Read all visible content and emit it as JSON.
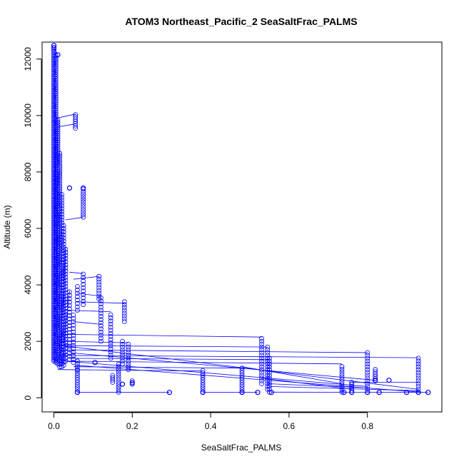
{
  "chart_data": {
    "type": "scatter",
    "title": "ATOM3 Northeast_Pacific_2 SeaSaltFrac_PALMS",
    "xlabel": "SeaSaltFrac_PALMS",
    "ylabel": "Altitude (m)",
    "xlim": [
      -0.03,
      0.99
    ],
    "ylim": [
      -500,
      12600
    ],
    "x_ticks": [
      0.0,
      0.2,
      0.4,
      0.6,
      0.8
    ],
    "x_tick_labels": [
      "0.0",
      "0.2",
      "0.4",
      "0.6",
      "0.8"
    ],
    "y_ticks": [
      0,
      2000,
      4000,
      6000,
      8000,
      10000,
      12000
    ],
    "y_tick_labels": [
      "0",
      "2000",
      "4000",
      "6000",
      "8000",
      "10000",
      "12000"
    ],
    "grid": false,
    "legend": "none",
    "point_style": "open-circle",
    "connected": true,
    "color": "#0000ff",
    "columns": [
      {
        "x": 0.0,
        "y_min": 1300,
        "y_max": 12450,
        "step": 60
      },
      {
        "x": 0.005,
        "y_min": 1250,
        "y_max": 12150,
        "step": 75
      },
      {
        "x": 0.01,
        "y_min": 1200,
        "y_max": 9900,
        "step": 80
      },
      {
        "x": 0.015,
        "y_min": 1100,
        "y_max": 8700,
        "step": 90
      },
      {
        "x": 0.02,
        "y_min": 1100,
        "y_max": 7200,
        "step": 100
      },
      {
        "x": 0.025,
        "y_min": 1150,
        "y_max": 6200,
        "step": 110
      },
      {
        "x": 0.03,
        "y_min": 1300,
        "y_max": 5300,
        "step": 110
      },
      {
        "x": 0.04,
        "y_min": 1350,
        "y_max": 3800,
        "step": 120
      },
      {
        "x": 0.05,
        "y_min": 1250,
        "y_max": 3000,
        "step": 120
      },
      {
        "x": 0.055,
        "y_min": 9550,
        "y_max": 10050,
        "step": 80
      },
      {
        "x": 0.06,
        "y_min": 3100,
        "y_max": 4000,
        "step": 120
      },
      {
        "x": 0.06,
        "y_min": 1000,
        "y_max": 1300,
        "step": 100
      },
      {
        "x": 0.06,
        "y_min": 200,
        "y_max": 1000,
        "step": 85
      },
      {
        "x": 0.075,
        "y_min": 6400,
        "y_max": 7400,
        "step": 90
      },
      {
        "x": 0.075,
        "y_min": 3300,
        "y_max": 4400,
        "step": 120
      },
      {
        "x": 0.115,
        "y_min": 3500,
        "y_max": 4300,
        "step": 100
      },
      {
        "x": 0.12,
        "y_min": 2000,
        "y_max": 3600,
        "step": 110
      },
      {
        "x": 0.145,
        "y_min": 1400,
        "y_max": 3000,
        "step": 110
      },
      {
        "x": 0.15,
        "y_min": 550,
        "y_max": 850,
        "step": 80
      },
      {
        "x": 0.165,
        "y_min": 200,
        "y_max": 1200,
        "step": 90
      },
      {
        "x": 0.175,
        "y_min": 1200,
        "y_max": 2000,
        "step": 100
      },
      {
        "x": 0.18,
        "y_min": 2700,
        "y_max": 3400,
        "step": 100
      },
      {
        "x": 0.19,
        "y_min": 1000,
        "y_max": 1900,
        "step": 100
      },
      {
        "x": 0.2,
        "y_min": 480,
        "y_max": 600,
        "step": 60
      },
      {
        "x": 0.38,
        "y_min": 200,
        "y_max": 1000,
        "step": 85
      },
      {
        "x": 0.48,
        "y_min": 200,
        "y_max": 1100,
        "step": 85
      },
      {
        "x": 0.53,
        "y_min": 500,
        "y_max": 2150,
        "step": 100
      },
      {
        "x": 0.545,
        "y_min": 300,
        "y_max": 1850,
        "step": 100
      },
      {
        "x": 0.55,
        "y_min": 200,
        "y_max": 1400,
        "step": 100
      },
      {
        "x": 0.735,
        "y_min": 200,
        "y_max": 1150,
        "step": 90
      },
      {
        "x": 0.76,
        "y_min": 200,
        "y_max": 550,
        "step": 70
      },
      {
        "x": 0.8,
        "y_min": 200,
        "y_max": 1600,
        "step": 100
      },
      {
        "x": 0.82,
        "y_min": 600,
        "y_max": 1000,
        "step": 80
      },
      {
        "x": 0.93,
        "y_min": 200,
        "y_max": 1450,
        "step": 100
      }
    ],
    "points": [
      {
        "x": 0.075,
        "y": 7430
      },
      {
        "x": 0.04,
        "y": 7430
      },
      {
        "x": 0.0,
        "y": 12480
      },
      {
        "x": 0.0,
        "y": 12400
      },
      {
        "x": 0.01,
        "y": 12150
      },
      {
        "x": 0.06,
        "y": 190
      },
      {
        "x": 0.295,
        "y": 190
      },
      {
        "x": 0.38,
        "y": 190
      },
      {
        "x": 0.48,
        "y": 190
      },
      {
        "x": 0.52,
        "y": 190
      },
      {
        "x": 0.555,
        "y": 190
      },
      {
        "x": 0.74,
        "y": 190
      },
      {
        "x": 0.76,
        "y": 190
      },
      {
        "x": 0.8,
        "y": 190
      },
      {
        "x": 0.83,
        "y": 190
      },
      {
        "x": 0.9,
        "y": 190
      },
      {
        "x": 0.93,
        "y": 190
      },
      {
        "x": 0.955,
        "y": 190
      },
      {
        "x": 0.2,
        "y": 530
      },
      {
        "x": 0.82,
        "y": 620
      },
      {
        "x": 0.855,
        "y": 620
      },
      {
        "x": 0.175,
        "y": 480
      },
      {
        "x": 0.105,
        "y": 1250
      }
    ],
    "lines": [
      {
        "x": [
          0.005,
          0.055
        ],
        "y": [
          9900,
          10050
        ]
      },
      {
        "x": [
          0.01,
          0.055
        ],
        "y": [
          9600,
          9700
        ]
      },
      {
        "x": [
          0.03,
          0.075
        ],
        "y": [
          6300,
          6400
        ]
      },
      {
        "x": [
          0.04,
          0.075
        ],
        "y": [
          4450,
          4400
        ]
      },
      {
        "x": [
          0.05,
          0.115
        ],
        "y": [
          4200,
          4300
        ]
      },
      {
        "x": [
          0.06,
          0.12
        ],
        "y": [
          3700,
          3600
        ]
      },
      {
        "x": [
          0.06,
          0.18
        ],
        "y": [
          3400,
          3350
        ]
      },
      {
        "x": [
          0.03,
          0.145
        ],
        "y": [
          3100,
          3050
        ]
      },
      {
        "x": [
          0.05,
          0.12
        ],
        "y": [
          2700,
          2600
        ]
      },
      {
        "x": [
          0.015,
          0.53
        ],
        "y": [
          2250,
          2150
        ]
      },
      {
        "x": [
          0.02,
          0.19
        ],
        "y": [
          2000,
          1950
        ]
      },
      {
        "x": [
          0.01,
          0.545
        ],
        "y": [
          1850,
          1800
        ]
      },
      {
        "x": [
          0.02,
          0.8
        ],
        "y": [
          1700,
          1600
        ]
      },
      {
        "x": [
          0.02,
          0.93
        ],
        "y": [
          1500,
          1420
        ]
      },
      {
        "x": [
          0.04,
          0.55
        ],
        "y": [
          1400,
          1350
        ]
      },
      {
        "x": [
          0.02,
          0.735
        ],
        "y": [
          1300,
          1200
        ]
      },
      {
        "x": [
          0.05,
          0.48
        ],
        "y": [
          1100,
          1050
        ]
      },
      {
        "x": [
          0.01,
          0.38
        ],
        "y": [
          1000,
          950
        ]
      },
      {
        "x": [
          0.02,
          0.93
        ],
        "y": [
          1850,
          300
        ]
      },
      {
        "x": [
          0.04,
          0.82
        ],
        "y": [
          1600,
          620
        ]
      },
      {
        "x": [
          0.03,
          0.8
        ],
        "y": [
          1300,
          400
        ]
      },
      {
        "x": [
          0.06,
          0.935
        ],
        "y": [
          1150,
          200
        ]
      },
      {
        "x": [
          0.55,
          0.93
        ],
        "y": [
          400,
          250
        ]
      },
      {
        "x": [
          0.545,
          0.8
        ],
        "y": [
          500,
          350
        ]
      },
      {
        "x": [
          0.53,
          0.76
        ],
        "y": [
          700,
          300
        ]
      },
      {
        "x": [
          0.48,
          0.735
        ],
        "y": [
          1100,
          500
        ]
      },
      {
        "x": [
          0.06,
          0.295
        ],
        "y": [
          190,
          190
        ]
      },
      {
        "x": [
          0.38,
          0.52
        ],
        "y": [
          190,
          190
        ]
      },
      {
        "x": [
          0.555,
          0.955
        ],
        "y": [
          200,
          190
        ]
      },
      {
        "x": [
          0.76,
          0.93
        ],
        "y": [
          550,
          550
        ]
      },
      {
        "x": [
          0.0,
          0.01
        ],
        "y": [
          12400,
          12150
        ]
      },
      {
        "x": [
          0.0,
          0.005
        ],
        "y": [
          1300,
          12150
        ]
      },
      {
        "x": [
          0.005,
          0.01
        ],
        "y": [
          1250,
          9900
        ]
      },
      {
        "x": [
          0.015,
          0.03
        ],
        "y": [
          1100,
          5300
        ]
      },
      {
        "x": [
          0.02,
          0.04
        ],
        "y": [
          1100,
          3800
        ]
      }
    ]
  }
}
